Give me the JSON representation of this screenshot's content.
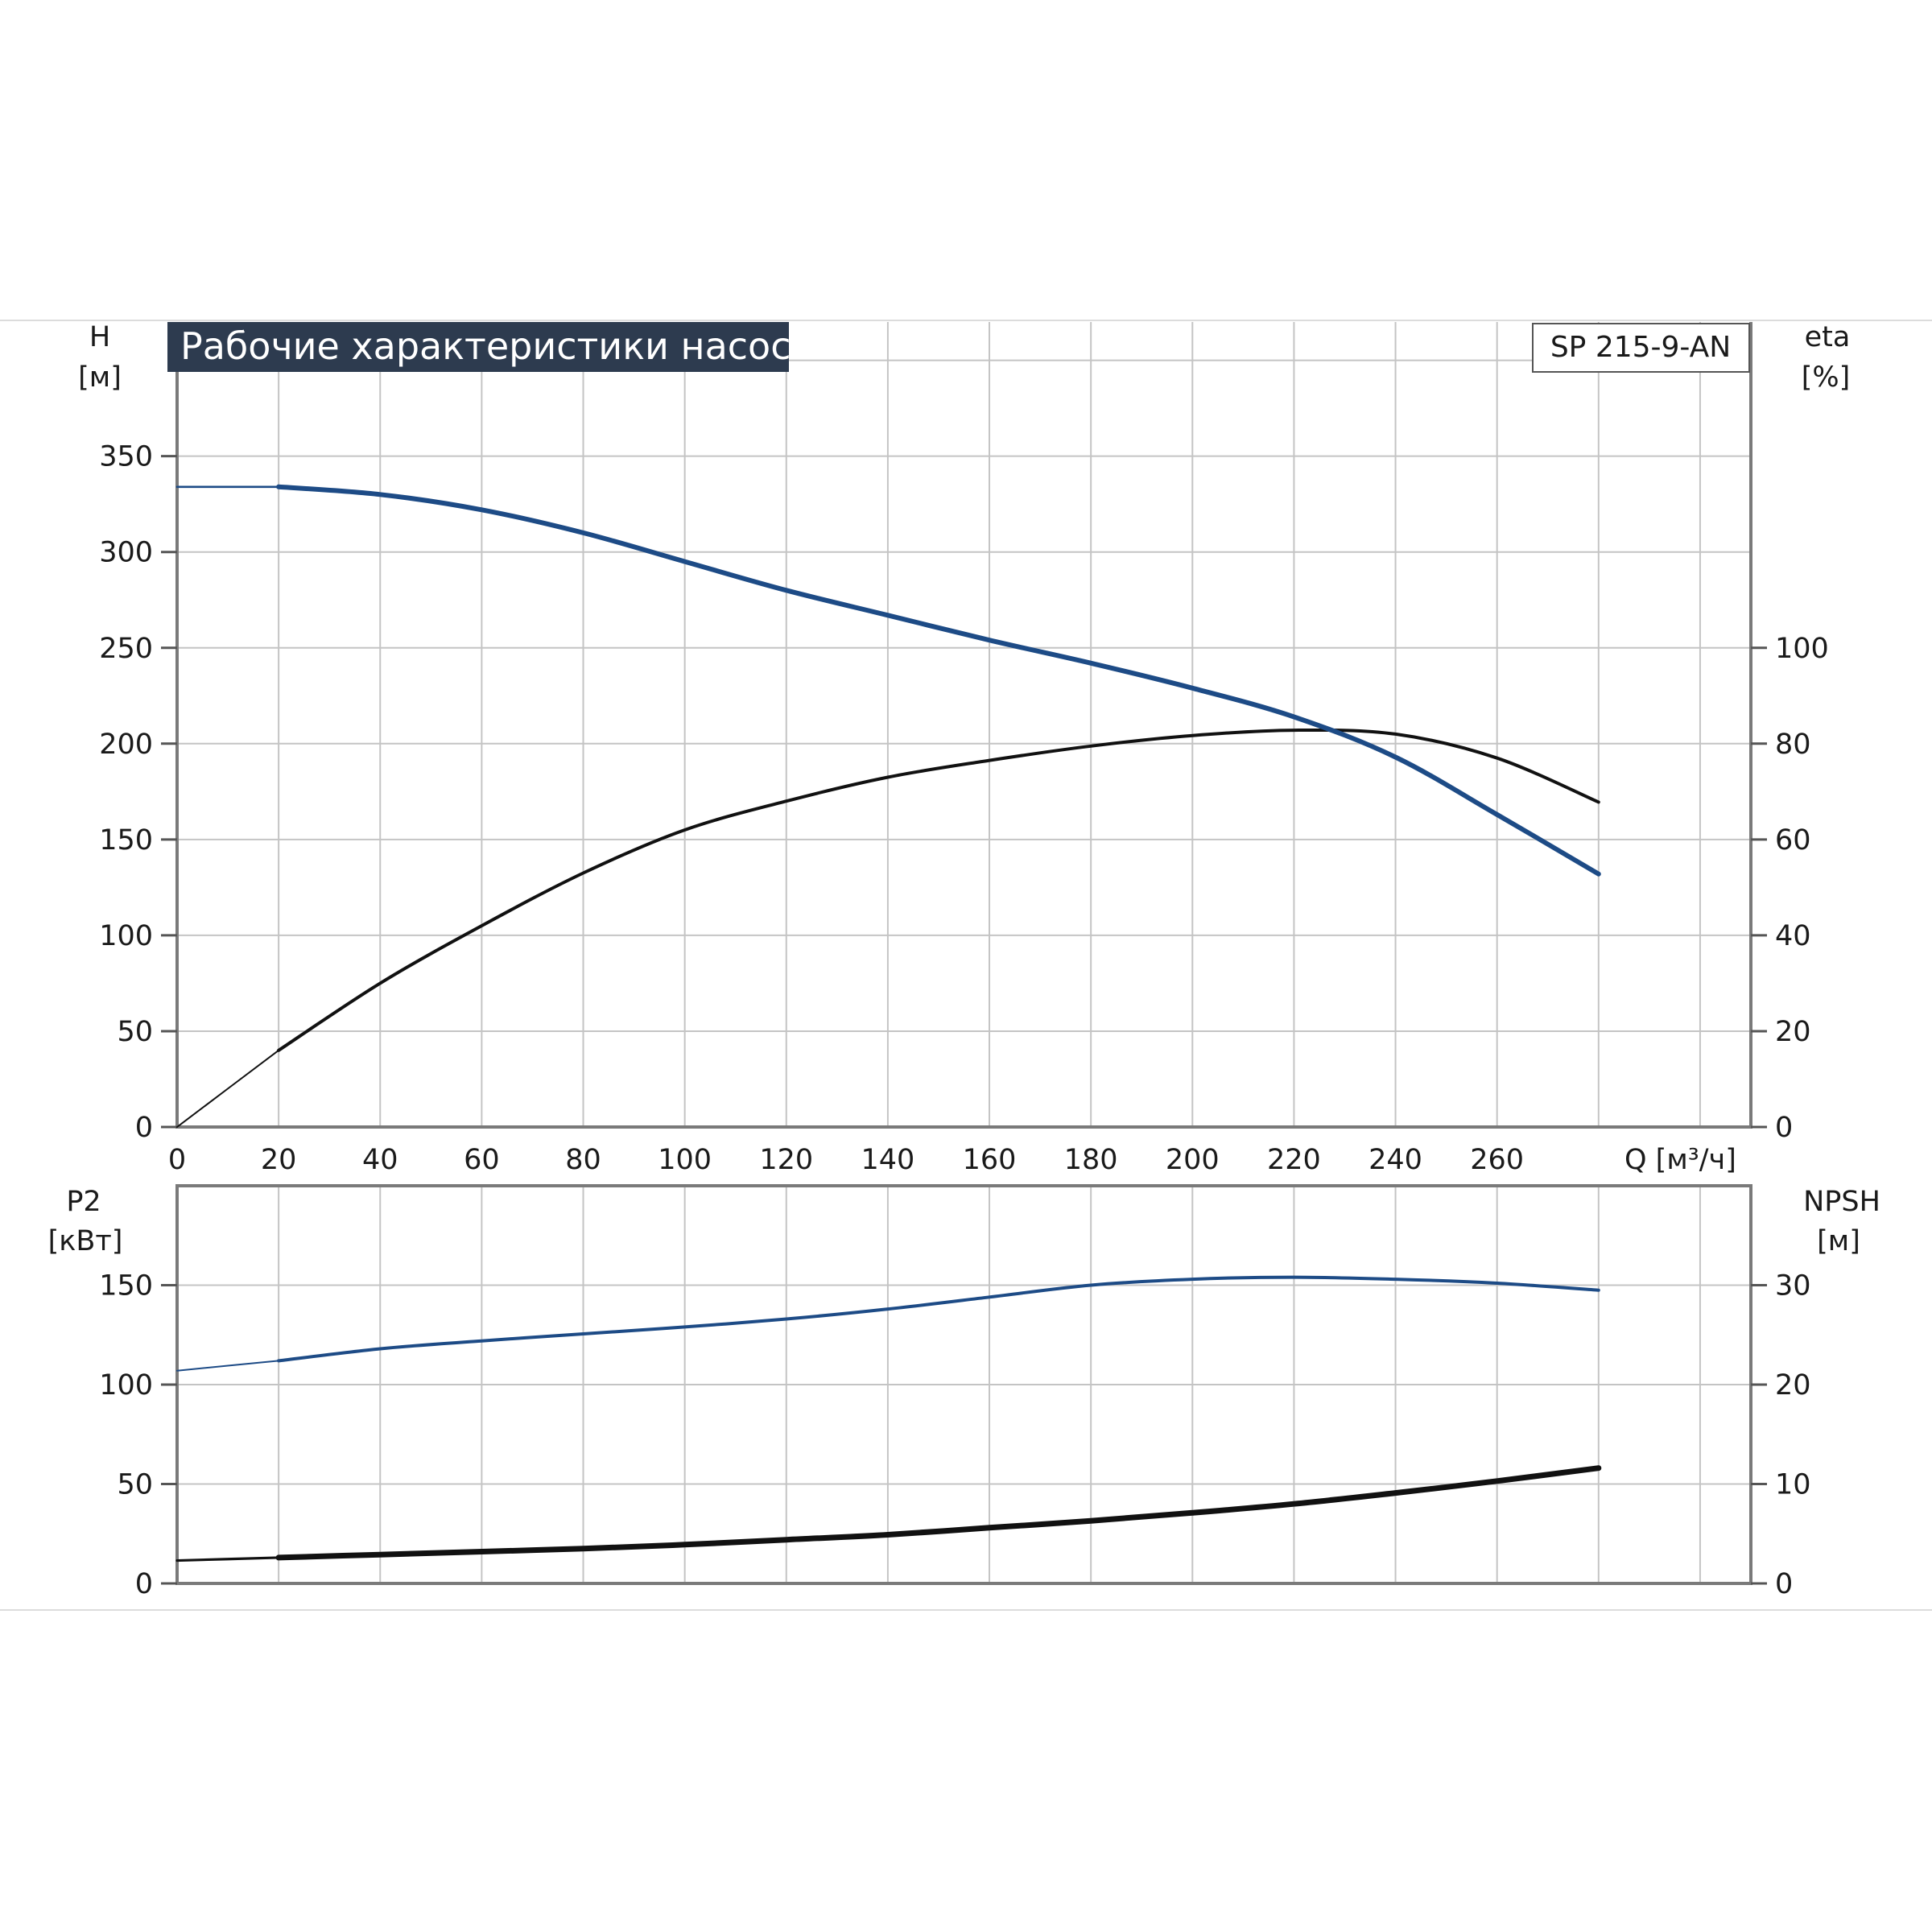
{
  "chart_data": [
    {
      "type": "line",
      "title": "Рабочие характеристики насоса",
      "model": "SP 215-9-AN",
      "xlabel": "Q [м³/ч]",
      "xticks": [
        "0",
        "20",
        "40",
        "60",
        "80",
        "100",
        "120",
        "140",
        "160",
        "180",
        "200",
        "220",
        "240",
        "260"
      ],
      "xlim": [
        0,
        310
      ],
      "ylabel_left": [
        "H",
        "[м]"
      ],
      "ylabel_right": [
        "eta",
        "[%]"
      ],
      "ylim_left": [
        0,
        420
      ],
      "ylim_right": [
        0,
        168
      ],
      "yticks_left": [
        0,
        50,
        100,
        150,
        200,
        250,
        300,
        350
      ],
      "yticks_right": [
        0,
        20,
        40,
        60,
        80,
        100
      ],
      "grid": true,
      "colors": {
        "H": "#1d4b86",
        "eta": "#111111",
        "grid": "#c4c4c4",
        "frame": "#7a7a7a",
        "title_bg": "#2d3b4f"
      },
      "series": [
        {
          "axis": "left",
          "x": [
            0,
            20,
            40,
            60,
            80,
            100,
            120,
            140,
            160,
            180,
            200,
            220,
            240,
            260,
            280
          ],
          "y": [
            334,
            334,
            330,
            322,
            310,
            295,
            280,
            267,
            254,
            242,
            229,
            214,
            193,
            163,
            132
          ]
        },
        {
          "axis": "right",
          "x": [
            0,
            20,
            40,
            60,
            80,
            100,
            120,
            140,
            160,
            180,
            200,
            220,
            240,
            260,
            280
          ],
          "y": [
            0,
            16,
            30,
            42,
            53,
            62,
            68,
            73,
            76.5,
            79.5,
            81.7,
            82.8,
            82,
            77,
            67.8
          ]
        }
      ]
    },
    {
      "type": "line",
      "ylabel_left": [
        "P2",
        "[кВт]"
      ],
      "ylabel_right": [
        "NPSH",
        "[м]"
      ],
      "xlim": [
        0,
        310
      ],
      "ylim_left": [
        0,
        200
      ],
      "ylim_right": [
        0,
        40
      ],
      "yticks_left": [
        0,
        50,
        100,
        150
      ],
      "yticks_right": [
        0,
        10,
        20,
        30
      ],
      "grid": true,
      "colors": {
        "P2": "#1d4b86",
        "NPSH": "#111111"
      },
      "series": [
        {
          "axis": "left",
          "x": [
            0,
            20,
            40,
            60,
            80,
            100,
            120,
            140,
            160,
            180,
            200,
            220,
            240,
            260,
            280
          ],
          "y": [
            107,
            112,
            118,
            122,
            125.5,
            129,
            133,
            138,
            144,
            150,
            153,
            154,
            153,
            151,
            147.5
          ]
        },
        {
          "axis": "right",
          "x": [
            0,
            20,
            40,
            60,
            80,
            100,
            120,
            140,
            160,
            180,
            200,
            220,
            240,
            260,
            280
          ],
          "y": [
            2.3,
            2.6,
            2.9,
            3.2,
            3.5,
            3.9,
            4.4,
            4.9,
            5.6,
            6.3,
            7.1,
            8.0,
            9.1,
            10.3,
            11.6
          ]
        }
      ]
    }
  ]
}
